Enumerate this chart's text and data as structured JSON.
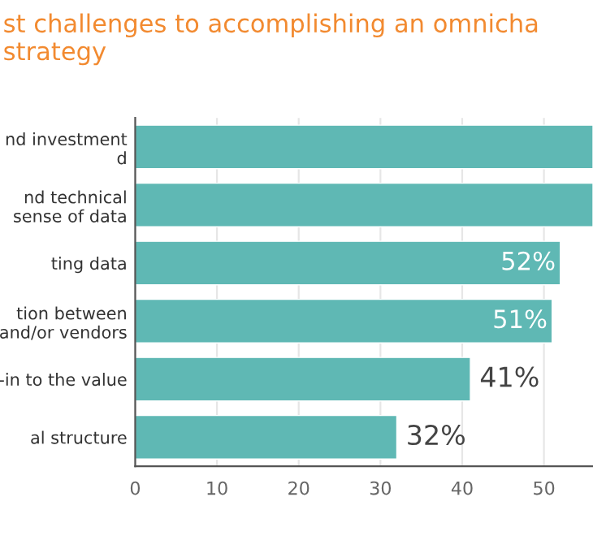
{
  "chart_data": {
    "type": "bar",
    "orientation": "horizontal",
    "title": "st challenges to accomplishing an omnicha\nstrategy",
    "categories": [
      "nd investment\nd",
      "nd technical\nsense of data",
      "ting data",
      "tion between\nand/or vendors",
      "-in to the value",
      "al structure"
    ],
    "values": [
      56,
      56,
      52,
      51,
      41,
      32
    ],
    "value_labels": [
      null,
      null,
      "52%",
      "51%",
      "41%",
      "32%"
    ],
    "color": "#5fb8b4",
    "xlim": [
      0,
      56
    ],
    "xticks": [
      0,
      10,
      20,
      30,
      40,
      50
    ],
    "grid": "x"
  }
}
